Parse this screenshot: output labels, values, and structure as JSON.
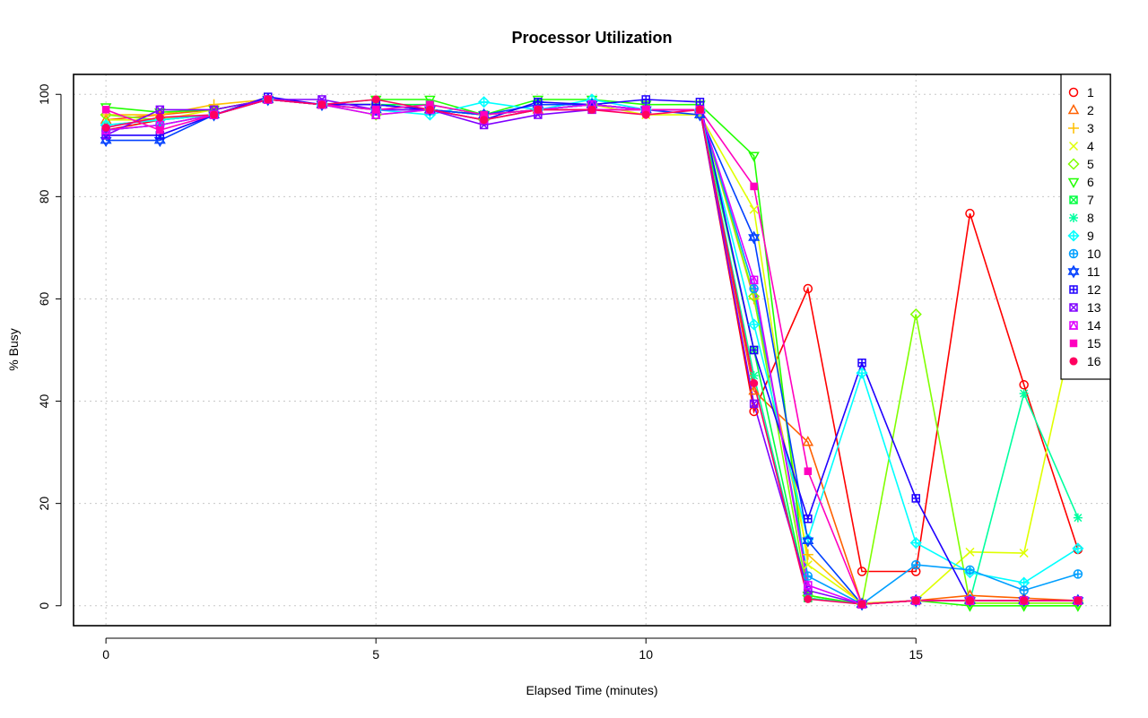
{
  "chart_data": {
    "type": "line",
    "title": "Processor Utilization",
    "xlabel": "Elapsed Time (minutes)",
    "ylabel": "% Busy",
    "xlim": [
      -0.6,
      18.6
    ],
    "ylim": [
      -3.9,
      103.9
    ],
    "x_ticks": [
      0,
      5,
      10,
      15
    ],
    "y_ticks": [
      0,
      20,
      40,
      60,
      80,
      100
    ],
    "x_tick_labels": [
      "0",
      "5",
      "10",
      "15"
    ],
    "y_tick_labels": [
      "0",
      "20",
      "40",
      "60",
      "80",
      "100"
    ],
    "grid": true,
    "legend_position": "top-right",
    "x": [
      0,
      1,
      2,
      3,
      4,
      5,
      6,
      7,
      8,
      9,
      10,
      11,
      12,
      13,
      14,
      15,
      16,
      17,
      18
    ],
    "series": [
      {
        "name": "1",
        "color": "#ff0000",
        "marker": "circle",
        "values": [
          93,
          95,
          96,
          99,
          98,
          98,
          97,
          96,
          97,
          98,
          97,
          97,
          38,
          62,
          6.7,
          6.7,
          76.7,
          43.2,
          11
        ]
      },
      {
        "name": "2",
        "color": "#ff6000",
        "marker": "triangle-up",
        "values": [
          95,
          96,
          97,
          99,
          98,
          98,
          97,
          96,
          97,
          98,
          97,
          97,
          42,
          32,
          0.3,
          1,
          2,
          1.5,
          1
        ]
      },
      {
        "name": "3",
        "color": "#ffbf00",
        "marker": "plus",
        "values": [
          96,
          96,
          98,
          99,
          98,
          98,
          97,
          96,
          97,
          98,
          97,
          97,
          60,
          10,
          0.3,
          1,
          1,
          1,
          1
        ]
      },
      {
        "name": "4",
        "color": "#dfff00",
        "marker": "cross",
        "values": [
          95,
          95,
          97,
          99,
          98,
          98,
          97,
          96,
          97,
          98,
          96,
          96,
          77.5,
          8,
          0.5,
          1,
          10.5,
          10.3,
          58
        ]
      },
      {
        "name": "5",
        "color": "#80ff00",
        "marker": "diamond",
        "values": [
          96,
          95,
          96,
          99,
          98,
          96,
          97,
          95,
          97,
          98,
          97,
          97,
          60.5,
          2,
          0.3,
          57,
          0.5,
          0.5,
          0.5
        ]
      },
      {
        "name": "6",
        "color": "#20ff00",
        "marker": "triangle-down",
        "values": [
          97.5,
          96.5,
          97,
          99,
          98,
          99,
          99,
          96,
          99,
          99,
          98,
          98,
          88,
          2,
          0.3,
          1,
          0,
          0,
          0
        ]
      },
      {
        "name": "7",
        "color": "#00ff40",
        "marker": "square-x",
        "values": [
          93,
          94,
          96,
          99,
          98,
          98,
          98,
          96,
          97,
          98,
          97,
          97,
          50,
          1.5,
          0.3,
          1,
          1,
          1,
          1
        ]
      },
      {
        "name": "8",
        "color": "#00ff9f",
        "marker": "asterisk",
        "values": [
          94,
          95,
          96,
          99,
          98,
          98,
          97,
          96,
          97,
          98,
          97,
          97,
          45,
          1.5,
          0.3,
          1,
          1,
          41.5,
          17.2
        ]
      },
      {
        "name": "9",
        "color": "#00ffff",
        "marker": "diamond-plus",
        "values": [
          94,
          95,
          96,
          99,
          98,
          97,
          96,
          98.5,
          97,
          99,
          97,
          97,
          55,
          13,
          45.5,
          12.3,
          6.5,
          4.5,
          11.2
        ]
      },
      {
        "name": "10",
        "color": "#009fff",
        "marker": "circle-plus",
        "values": [
          93,
          94,
          96,
          99,
          98,
          98,
          97,
          96,
          97,
          98,
          97,
          97,
          62,
          5.8,
          0.3,
          8,
          7,
          3,
          6.2
        ]
      },
      {
        "name": "11",
        "color": "#0040ff",
        "marker": "star-of-david",
        "values": [
          91,
          91,
          96,
          99,
          98,
          97,
          97,
          96,
          98,
          98,
          97,
          96,
          72,
          12.7,
          0.3,
          1,
          1,
          1,
          1
        ]
      },
      {
        "name": "12",
        "color": "#2000ff",
        "marker": "square-plus",
        "values": [
          92,
          92,
          96,
          99.5,
          98,
          98,
          97,
          95,
          98.5,
          98,
          99,
          98.5,
          50,
          17,
          47.5,
          21,
          1,
          1,
          1
        ]
      },
      {
        "name": "13",
        "color": "#8000ff",
        "marker": "square-x",
        "values": [
          92,
          97,
          97,
          99,
          99,
          97,
          97,
          94,
          96,
          97,
          97,
          97,
          39.5,
          3,
          0.3,
          1,
          1,
          1,
          1
        ]
      },
      {
        "name": "14",
        "color": "#df00ff",
        "marker": "square-triangle",
        "values": [
          93,
          94,
          96,
          99,
          98,
          96,
          97,
          95,
          97,
          98,
          97,
          97,
          63.7,
          4,
          0.3,
          1,
          1,
          1,
          1
        ]
      },
      {
        "name": "15",
        "color": "#ff00bf",
        "marker": "filled-square",
        "values": [
          97,
          93,
          96,
          99,
          98,
          97,
          98,
          96,
          97,
          97,
          97,
          97,
          82,
          26.3,
          0.3,
          1,
          1,
          1,
          1
        ]
      },
      {
        "name": "16",
        "color": "#ff0060",
        "marker": "filled-circle",
        "values": [
          93.5,
          95.5,
          96,
          99,
          98,
          99,
          97,
          95,
          97,
          97,
          96,
          97,
          43.5,
          1.3,
          0.3,
          1,
          1,
          1,
          1
        ]
      }
    ]
  }
}
